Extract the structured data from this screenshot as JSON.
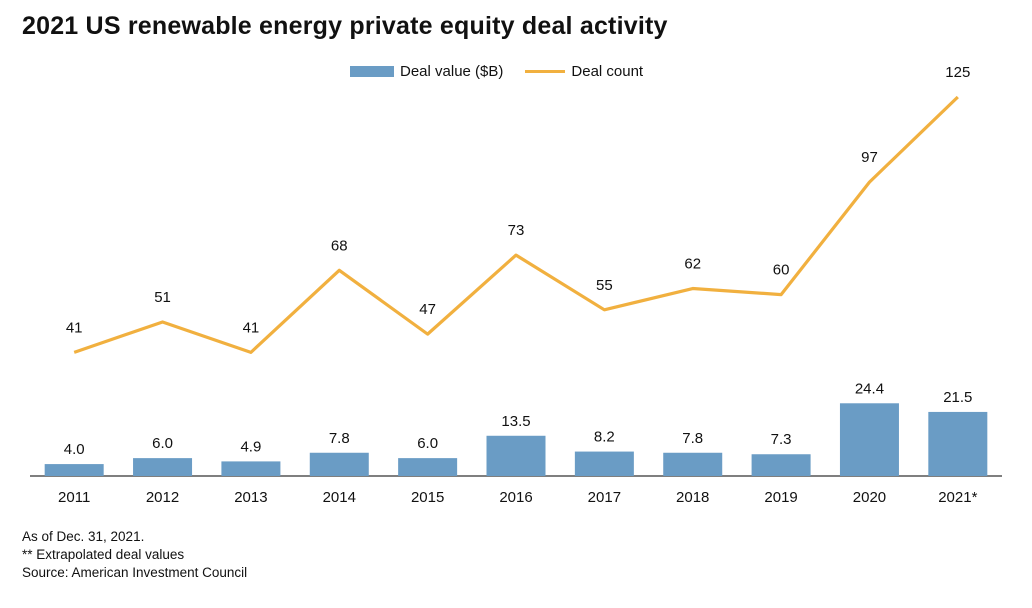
{
  "chart_data": {
    "type": "bar",
    "title": "2021 US renewable energy private equity deal activity",
    "categories": [
      "2011",
      "2012",
      "2013",
      "2014",
      "2015",
      "2016",
      "2017",
      "2018",
      "2019",
      "2020",
      "2021*"
    ],
    "series": [
      {
        "name": "Deal value ($B)",
        "type": "bar",
        "values": [
          4.0,
          6.0,
          4.9,
          7.8,
          6.0,
          13.5,
          8.2,
          7.8,
          7.3,
          24.4,
          21.5
        ],
        "labels": [
          "4.0",
          "6.0",
          "4.9",
          "7.8",
          "6.0",
          "13.5",
          "8.2",
          "7.8",
          "7.3",
          "24.4",
          "21.5"
        ],
        "color": "#6a9cc5"
      },
      {
        "name": "Deal count",
        "type": "line",
        "values": [
          41,
          51,
          41,
          68,
          47,
          73,
          55,
          62,
          60,
          97,
          125
        ],
        "labels": [
          "41",
          "51",
          "41",
          "68",
          "47",
          "73",
          "55",
          "62",
          "60",
          "97",
          "125"
        ],
        "color": "#f1b03f"
      }
    ],
    "xlabel": "",
    "ylabel": "",
    "grid": false,
    "legend_position": "top-center"
  },
  "notes": {
    "line1": "As of Dec. 31, 2021.",
    "line2": "** Extrapolated deal values",
    "line3": "Source: American Investment Council"
  },
  "colors": {
    "axis": "#555555",
    "text": "#111111"
  }
}
